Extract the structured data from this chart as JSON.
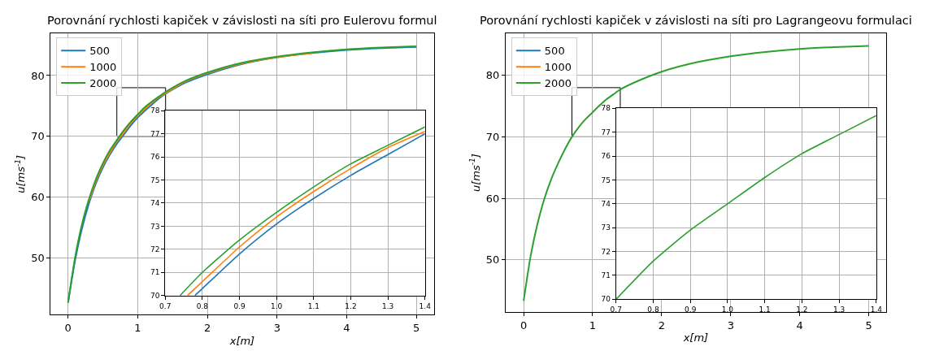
{
  "chart_data": [
    {
      "type": "line",
      "title": "Porovnání rychlosti kapiček v závislosti na síti pro Eulerovu formul",
      "xlabel": "x[m]",
      "ylabel": "u[ms$^{-1}$]",
      "xlim": [
        -0.25,
        5.25
      ],
      "ylim": [
        40.7,
        86.9
      ],
      "xticks": [
        0,
        1,
        2,
        3,
        4,
        5
      ],
      "yticks": [
        50,
        60,
        70,
        80
      ],
      "grid": true,
      "legend": "top left",
      "x": [
        0,
        0.1,
        0.2,
        0.3,
        0.4,
        0.5,
        0.6,
        0.7,
        0.8,
        0.9,
        1.0,
        1.1,
        1.2,
        1.3,
        1.4,
        1.7,
        2.0,
        2.5,
        3.0,
        3.5,
        4.0,
        4.5,
        5.0
      ],
      "series": [
        {
          "name": "500",
          "color": "#1f77b4",
          "values": [
            42.7,
            49.6,
            54.9,
            59.0,
            62.3,
            64.9,
            67.0,
            68.8,
            70.3,
            71.8,
            73.1,
            74.2,
            75.2,
            76.2,
            77.0,
            78.9,
            80.2,
            81.9,
            83.0,
            83.7,
            84.2,
            84.5,
            84.7
          ]
        },
        {
          "name": "1000",
          "color": "#ff7f0e",
          "values": [
            null,
            null,
            null,
            59.4,
            62.7,
            65.3,
            67.3,
            69.2,
            70.6,
            72.2,
            73.4,
            74.5,
            75.5,
            76.4,
            77.1,
            79.1,
            80.4,
            82.0,
            83.0,
            83.7,
            null,
            null,
            null
          ]
        },
        {
          "name": "2000",
          "color": "#2ca02c",
          "values": [
            42.7,
            50.1,
            55.6,
            59.7,
            63.0,
            65.6,
            67.7,
            69.4,
            71.0,
            72.4,
            73.6,
            74.8,
            75.7,
            76.5,
            77.3,
            79.2,
            80.5,
            82.1,
            83.1,
            83.8,
            84.3,
            84.6,
            84.8
          ]
        }
      ]
    },
    {
      "type": "line",
      "xlim": [
        0.7,
        1.4
      ],
      "ylim": [
        70,
        78
      ],
      "xticks": [
        {
          "value": 0.7,
          "label": "0.7"
        },
        {
          "value": 0.8,
          "label": "0.8"
        },
        {
          "value": 0.9,
          "label": "0.9"
        },
        {
          "value": 1.0,
          "label": "1.0"
        },
        {
          "value": 1.1,
          "label": "1.1"
        },
        {
          "value": 1.2,
          "label": "1.2"
        },
        {
          "value": 1.3,
          "label": "1.3"
        },
        {
          "value": 1.4,
          "label": "1.4"
        }
      ],
      "yticks": [
        70,
        71,
        72,
        73,
        74,
        75,
        76,
        77,
        78
      ],
      "grid": true,
      "series": [
        {
          "color": "#1f77b4",
          "x": [
            0.78,
            0.8,
            0.9,
            1.0,
            1.1,
            1.2,
            1.3,
            1.4
          ],
          "values": [
            70.0,
            70.3,
            71.8,
            73.1,
            74.2,
            75.2,
            76.1,
            77.0
          ]
        },
        {
          "color": "#ff7f0e",
          "x": [
            0.76,
            0.8,
            0.9,
            1.0,
            1.1,
            1.2,
            1.3,
            1.4
          ],
          "values": [
            70.0,
            70.6,
            72.1,
            73.4,
            74.5,
            75.5,
            76.4,
            77.1
          ]
        },
        {
          "color": "#2ca02c",
          "x": [
            0.74,
            0.8,
            0.9,
            1.0,
            1.1,
            1.2,
            1.3,
            1.4
          ],
          "values": [
            70.0,
            71.0,
            72.4,
            73.6,
            74.7,
            75.7,
            76.5,
            77.3
          ]
        }
      ]
    },
    {
      "type": "line",
      "title": "Porovnání rychlosti kapiček v závislosti na síti pro Lagrangeovu formulaci",
      "xlabel": "x[m]",
      "ylabel": "u[ms$^{-1}$]",
      "xlim": [
        -0.26,
        5.25
      ],
      "ylim": [
        41.5,
        86.8
      ],
      "xticks": [
        0,
        1,
        2,
        3,
        4,
        5
      ],
      "yticks": [
        50,
        60,
        70,
        80
      ],
      "grid": true,
      "legend": "top left",
      "x": [
        0,
        0.1,
        0.2,
        0.3,
        0.4,
        0.5,
        0.6,
        0.7,
        0.8,
        0.9,
        1.0,
        1.1,
        1.2,
        1.3,
        1.4,
        1.7,
        2.0,
        2.5,
        3.0,
        3.5,
        4.0,
        4.5,
        5.0
      ],
      "series": [
        {
          "name": "500",
          "color": "#1f77b4",
          "values": [
            null,
            null,
            null,
            null,
            null,
            null,
            null,
            null,
            null,
            null,
            null,
            null,
            null,
            null,
            null,
            null,
            null,
            null,
            null,
            null,
            null,
            null,
            null
          ]
        },
        {
          "name": "1000",
          "color": "#ff7f0e",
          "values": [
            null,
            null,
            null,
            null,
            null,
            null,
            null,
            null,
            null,
            null,
            null,
            null,
            null,
            null,
            null,
            null,
            null,
            null,
            null,
            null,
            null,
            null,
            null
          ]
        },
        {
          "name": "2000",
          "color": "#2ca02c",
          "values": [
            43.3,
            50.5,
            55.8,
            59.9,
            63.1,
            65.7,
            68.0,
            70.0,
            71.6,
            72.9,
            74.0,
            75.1,
            76.1,
            76.9,
            77.7,
            79.3,
            80.6,
            82.1,
            83.1,
            83.8,
            84.3,
            84.6,
            84.8
          ]
        }
      ]
    },
    {
      "type": "line",
      "xlim": [
        0.7,
        1.4
      ],
      "ylim": [
        70,
        78
      ],
      "xticks": [
        {
          "value": 0.7,
          "label": "0.7"
        },
        {
          "value": 0.8,
          "label": "0.8"
        },
        {
          "value": 0.9,
          "label": "0.9"
        },
        {
          "value": 1.0,
          "label": "1.0"
        },
        {
          "value": 1.1,
          "label": "1.1"
        },
        {
          "value": 1.2,
          "label": "1.2"
        },
        {
          "value": 1.3,
          "label": "1.3"
        },
        {
          "value": 1.4,
          "label": "1.4"
        }
      ],
      "yticks": [
        70,
        71,
        72,
        73,
        74,
        75,
        76,
        77,
        78
      ],
      "grid": true,
      "series": [
        {
          "color": "#2ca02c",
          "x": [
            0.7,
            0.8,
            0.9,
            1.0,
            1.1,
            1.2,
            1.3,
            1.4
          ],
          "values": [
            70.0,
            71.6,
            72.9,
            74.0,
            75.1,
            76.1,
            76.9,
            77.7
          ]
        }
      ]
    }
  ]
}
